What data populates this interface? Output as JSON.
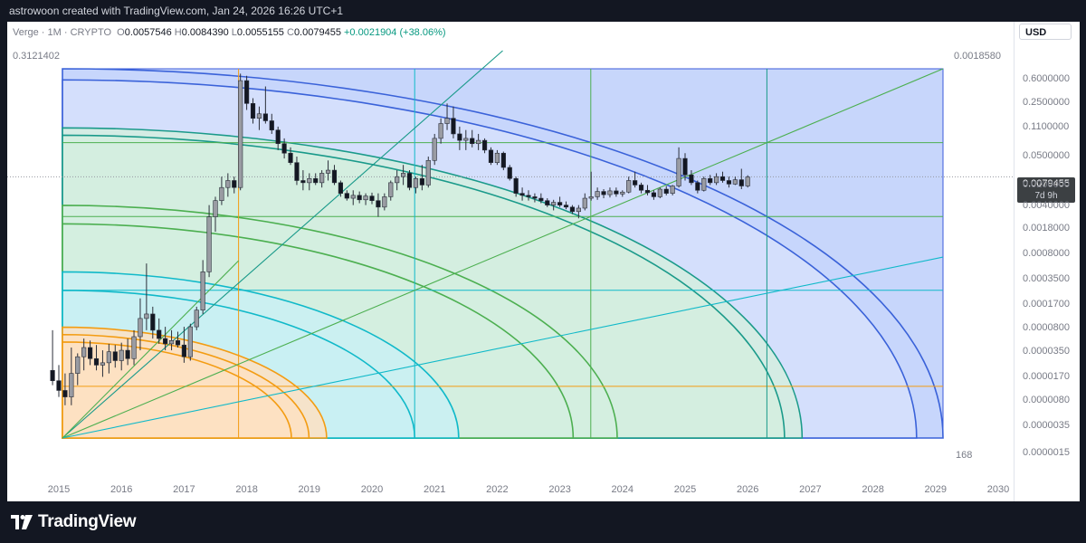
{
  "header": {
    "attribution": "astrowoon created with TradingView.com, Jan 24, 2026 16:26 UTC+1"
  },
  "legend": {
    "symbol": "Verge · 1M · CRYPTO",
    "open_label": "O",
    "open": "0.0057546",
    "high_label": "H",
    "high": "0.0084390",
    "low_label": "L",
    "low": "0.0055155",
    "close_label": "C",
    "close": "0.0079455",
    "change": "+0.0021904 (+38.06%)"
  },
  "price_axis": {
    "currency": "USD",
    "labels": [
      "0.6000000",
      "0.2500000",
      "0.1100000",
      "0.0500000",
      "0.0200000",
      "0.0040000",
      "0.0018000",
      "0.0008000",
      "0.0003500",
      "0.0001700",
      "0.0000800",
      "0.0000350",
      "0.0000170",
      "0.0000080",
      "0.0000035",
      "0.0000015"
    ],
    "last_price": "0.0079455",
    "countdown": "7d 9h"
  },
  "levels": {
    "top_left": "0.3121402",
    "top_right": "0.0018580",
    "bottom_right": "168"
  },
  "time_axis": {
    "labels": [
      "2015",
      "2016",
      "2017",
      "2018",
      "2019",
      "2020",
      "2021",
      "2022",
      "2023",
      "2024",
      "2025",
      "2026",
      "2027",
      "2028",
      "2029",
      "2030"
    ]
  },
  "footer": {
    "brand": "TradingView"
  },
  "colors": {
    "up": "#ffffff",
    "down": "#131722",
    "wick": "#2a2e39",
    "blue_zone": "#c7d6fb",
    "orange_zone": "#fde1c2",
    "cyan_zone": "#c9f0f3",
    "green_zone": "#d3eedf"
  },
  "chart_data": {
    "type": "candlestick",
    "x_unit": "year",
    "y_scale": "log",
    "ylim": [
      1.5e-06,
      0.6
    ],
    "xlim": [
      2014.6,
      2030.4
    ],
    "candles": [
      {
        "t": 2014.9,
        "o": 1e-05,
        "h": 4e-05,
        "l": 6e-06,
        "c": 7e-06
      },
      {
        "t": 2015.0,
        "o": 7e-06,
        "h": 1.2e-05,
        "l": 4e-06,
        "c": 5e-06
      },
      {
        "t": 2015.1,
        "o": 5e-06,
        "h": 9e-06,
        "l": 3e-06,
        "c": 4e-06
      },
      {
        "t": 2015.2,
        "o": 4e-06,
        "h": 2.2e-05,
        "l": 3e-06,
        "c": 9e-06
      },
      {
        "t": 2015.3,
        "o": 9e-06,
        "h": 1.8e-05,
        "l": 6e-06,
        "c": 1.6e-05
      },
      {
        "t": 2015.4,
        "o": 1.6e-05,
        "h": 3e-05,
        "l": 1e-05,
        "c": 2.2e-05
      },
      {
        "t": 2015.5,
        "o": 2.2e-05,
        "h": 2.8e-05,
        "l": 1.2e-05,
        "c": 1.5e-05
      },
      {
        "t": 2015.6,
        "o": 1.5e-05,
        "h": 2.4e-05,
        "l": 1e-05,
        "c": 1.2e-05
      },
      {
        "t": 2015.7,
        "o": 1.2e-05,
        "h": 2e-05,
        "l": 8e-06,
        "c": 1.3e-05
      },
      {
        "t": 2015.8,
        "o": 1.3e-05,
        "h": 2.5e-05,
        "l": 9e-06,
        "c": 1.9e-05
      },
      {
        "t": 2015.9,
        "o": 1.9e-05,
        "h": 2.4e-05,
        "l": 1.1e-05,
        "c": 1.4e-05
      },
      {
        "t": 2016.0,
        "o": 1.4e-05,
        "h": 2.6e-05,
        "l": 1e-05,
        "c": 2e-05
      },
      {
        "t": 2016.1,
        "o": 2e-05,
        "h": 3e-05,
        "l": 1.2e-05,
        "c": 1.5e-05
      },
      {
        "t": 2016.2,
        "o": 1.5e-05,
        "h": 4e-05,
        "l": 1.2e-05,
        "c": 3.2e-05
      },
      {
        "t": 2016.3,
        "o": 3.2e-05,
        "h": 0.00012,
        "l": 2e-05,
        "c": 6e-05
      },
      {
        "t": 2016.4,
        "o": 6e-05,
        "h": 0.0004,
        "l": 4e-05,
        "c": 7e-05
      },
      {
        "t": 2016.5,
        "o": 7e-05,
        "h": 9e-05,
        "l": 3e-05,
        "c": 4e-05
      },
      {
        "t": 2016.6,
        "o": 4e-05,
        "h": 6e-05,
        "l": 2.5e-05,
        "c": 3e-05
      },
      {
        "t": 2016.7,
        "o": 3e-05,
        "h": 4.5e-05,
        "l": 2e-05,
        "c": 2.5e-05
      },
      {
        "t": 2016.8,
        "o": 2.5e-05,
        "h": 4e-05,
        "l": 2e-05,
        "c": 2.8e-05
      },
      {
        "t": 2016.9,
        "o": 2.8e-05,
        "h": 3.8e-05,
        "l": 2.2e-05,
        "c": 2.4e-05
      },
      {
        "t": 2017.0,
        "o": 2.4e-05,
        "h": 4.5e-05,
        "l": 1.3e-05,
        "c": 1.6e-05
      },
      {
        "t": 2017.1,
        "o": 1.6e-05,
        "h": 5e-05,
        "l": 1.4e-05,
        "c": 4.5e-05
      },
      {
        "t": 2017.2,
        "o": 4.5e-05,
        "h": 9e-05,
        "l": 4e-05,
        "c": 8e-05
      },
      {
        "t": 2017.3,
        "o": 8e-05,
        "h": 0.00045,
        "l": 7e-05,
        "c": 0.0003
      },
      {
        "t": 2017.4,
        "o": 0.0003,
        "h": 0.003,
        "l": 0.00025,
        "c": 0.002
      },
      {
        "t": 2017.5,
        "o": 0.002,
        "h": 0.004,
        "l": 0.0012,
        "c": 0.0035
      },
      {
        "t": 2017.6,
        "o": 0.0035,
        "h": 0.008,
        "l": 0.003,
        "c": 0.0055
      },
      {
        "t": 2017.7,
        "o": 0.0055,
        "h": 0.009,
        "l": 0.004,
        "c": 0.007
      },
      {
        "t": 2017.8,
        "o": 0.007,
        "h": 0.008,
        "l": 0.0045,
        "c": 0.0055
      },
      {
        "t": 2017.9,
        "o": 0.0055,
        "h": 0.28,
        "l": 0.005,
        "c": 0.22
      },
      {
        "t": 2018.0,
        "o": 0.22,
        "h": 0.26,
        "l": 0.08,
        "c": 0.1
      },
      {
        "t": 2018.1,
        "o": 0.1,
        "h": 0.12,
        "l": 0.05,
        "c": 0.06
      },
      {
        "t": 2018.2,
        "o": 0.06,
        "h": 0.09,
        "l": 0.04,
        "c": 0.07
      },
      {
        "t": 2018.3,
        "o": 0.07,
        "h": 0.18,
        "l": 0.05,
        "c": 0.055
      },
      {
        "t": 2018.4,
        "o": 0.055,
        "h": 0.07,
        "l": 0.035,
        "c": 0.04
      },
      {
        "t": 2018.5,
        "o": 0.04,
        "h": 0.045,
        "l": 0.02,
        "c": 0.025
      },
      {
        "t": 2018.6,
        "o": 0.025,
        "h": 0.03,
        "l": 0.015,
        "c": 0.018
      },
      {
        "t": 2018.7,
        "o": 0.018,
        "h": 0.022,
        "l": 0.012,
        "c": 0.013
      },
      {
        "t": 2018.8,
        "o": 0.013,
        "h": 0.016,
        "l": 0.006,
        "c": 0.007
      },
      {
        "t": 2018.9,
        "o": 0.007,
        "h": 0.01,
        "l": 0.005,
        "c": 0.0065
      },
      {
        "t": 2019.0,
        "o": 0.0065,
        "h": 0.009,
        "l": 0.005,
        "c": 0.0075
      },
      {
        "t": 2019.1,
        "o": 0.0075,
        "h": 0.009,
        "l": 0.006,
        "c": 0.0065
      },
      {
        "t": 2019.2,
        "o": 0.0065,
        "h": 0.01,
        "l": 0.0055,
        "c": 0.009
      },
      {
        "t": 2019.3,
        "o": 0.009,
        "h": 0.014,
        "l": 0.007,
        "c": 0.01
      },
      {
        "t": 2019.4,
        "o": 0.01,
        "h": 0.012,
        "l": 0.006,
        "c": 0.0065
      },
      {
        "t": 2019.5,
        "o": 0.0065,
        "h": 0.007,
        "l": 0.004,
        "c": 0.0045
      },
      {
        "t": 2019.6,
        "o": 0.0045,
        "h": 0.005,
        "l": 0.0035,
        "c": 0.0038
      },
      {
        "t": 2019.7,
        "o": 0.0038,
        "h": 0.005,
        "l": 0.003,
        "c": 0.0042
      },
      {
        "t": 2019.8,
        "o": 0.0042,
        "h": 0.0048,
        "l": 0.0032,
        "c": 0.0036
      },
      {
        "t": 2019.9,
        "o": 0.0036,
        "h": 0.0045,
        "l": 0.003,
        "c": 0.0041
      },
      {
        "t": 2020.0,
        "o": 0.0041,
        "h": 0.0046,
        "l": 0.0031,
        "c": 0.0035
      },
      {
        "t": 2020.1,
        "o": 0.0035,
        "h": 0.0045,
        "l": 0.002,
        "c": 0.0028
      },
      {
        "t": 2020.2,
        "o": 0.0028,
        "h": 0.0045,
        "l": 0.0025,
        "c": 0.004
      },
      {
        "t": 2020.3,
        "o": 0.004,
        "h": 0.007,
        "l": 0.0035,
        "c": 0.0065
      },
      {
        "t": 2020.4,
        "o": 0.0065,
        "h": 0.01,
        "l": 0.005,
        "c": 0.008
      },
      {
        "t": 2020.5,
        "o": 0.008,
        "h": 0.012,
        "l": 0.006,
        "c": 0.009
      },
      {
        "t": 2020.6,
        "o": 0.009,
        "h": 0.01,
        "l": 0.005,
        "c": 0.0055
      },
      {
        "t": 2020.7,
        "o": 0.0055,
        "h": 0.008,
        "l": 0.0045,
        "c": 0.0075
      },
      {
        "t": 2020.8,
        "o": 0.0075,
        "h": 0.012,
        "l": 0.005,
        "c": 0.006
      },
      {
        "t": 2020.9,
        "o": 0.006,
        "h": 0.016,
        "l": 0.0055,
        "c": 0.014
      },
      {
        "t": 2021.0,
        "o": 0.014,
        "h": 0.035,
        "l": 0.012,
        "c": 0.03
      },
      {
        "t": 2021.1,
        "o": 0.03,
        "h": 0.06,
        "l": 0.025,
        "c": 0.05
      },
      {
        "t": 2021.2,
        "o": 0.05,
        "h": 0.1,
        "l": 0.04,
        "c": 0.06
      },
      {
        "t": 2021.3,
        "o": 0.06,
        "h": 0.09,
        "l": 0.03,
        "c": 0.035
      },
      {
        "t": 2021.4,
        "o": 0.035,
        "h": 0.045,
        "l": 0.02,
        "c": 0.028
      },
      {
        "t": 2021.5,
        "o": 0.028,
        "h": 0.04,
        "l": 0.02,
        "c": 0.03
      },
      {
        "t": 2021.6,
        "o": 0.03,
        "h": 0.04,
        "l": 0.022,
        "c": 0.025
      },
      {
        "t": 2021.7,
        "o": 0.025,
        "h": 0.035,
        "l": 0.02,
        "c": 0.028
      },
      {
        "t": 2021.8,
        "o": 0.028,
        "h": 0.03,
        "l": 0.018,
        "c": 0.02
      },
      {
        "t": 2021.9,
        "o": 0.02,
        "h": 0.022,
        "l": 0.012,
        "c": 0.013
      },
      {
        "t": 2022.0,
        "o": 0.013,
        "h": 0.02,
        "l": 0.012,
        "c": 0.018
      },
      {
        "t": 2022.1,
        "o": 0.018,
        "h": 0.019,
        "l": 0.01,
        "c": 0.011
      },
      {
        "t": 2022.2,
        "o": 0.011,
        "h": 0.012,
        "l": 0.007,
        "c": 0.0075
      },
      {
        "t": 2022.3,
        "o": 0.0075,
        "h": 0.008,
        "l": 0.004,
        "c": 0.0045
      },
      {
        "t": 2022.4,
        "o": 0.0045,
        "h": 0.0055,
        "l": 0.0035,
        "c": 0.0042
      },
      {
        "t": 2022.5,
        "o": 0.0042,
        "h": 0.005,
        "l": 0.0035,
        "c": 0.004
      },
      {
        "t": 2022.6,
        "o": 0.004,
        "h": 0.0045,
        "l": 0.0033,
        "c": 0.0038
      },
      {
        "t": 2022.7,
        "o": 0.0038,
        "h": 0.0045,
        "l": 0.0032,
        "c": 0.0035
      },
      {
        "t": 2022.8,
        "o": 0.0035,
        "h": 0.0038,
        "l": 0.0028,
        "c": 0.003
      },
      {
        "t": 2022.9,
        "o": 0.003,
        "h": 0.0036,
        "l": 0.0025,
        "c": 0.0033
      },
      {
        "t": 2023.0,
        "o": 0.0033,
        "h": 0.004,
        "l": 0.0028,
        "c": 0.003
      },
      {
        "t": 2023.1,
        "o": 0.003,
        "h": 0.0034,
        "l": 0.0026,
        "c": 0.0028
      },
      {
        "t": 2023.2,
        "o": 0.0028,
        "h": 0.003,
        "l": 0.0022,
        "c": 0.0024
      },
      {
        "t": 2023.3,
        "o": 0.0024,
        "h": 0.003,
        "l": 0.0019,
        "c": 0.0027
      },
      {
        "t": 2023.4,
        "o": 0.0027,
        "h": 0.0045,
        "l": 0.0025,
        "c": 0.0038
      },
      {
        "t": 2023.5,
        "o": 0.0038,
        "h": 0.0095,
        "l": 0.0035,
        "c": 0.004
      },
      {
        "t": 2023.6,
        "o": 0.004,
        "h": 0.0055,
        "l": 0.0036,
        "c": 0.0048
      },
      {
        "t": 2023.7,
        "o": 0.0048,
        "h": 0.0052,
        "l": 0.0038,
        "c": 0.0043
      },
      {
        "t": 2023.8,
        "o": 0.0043,
        "h": 0.0055,
        "l": 0.0039,
        "c": 0.0049
      },
      {
        "t": 2023.9,
        "o": 0.0049,
        "h": 0.0055,
        "l": 0.004,
        "c": 0.0044
      },
      {
        "t": 2024.0,
        "o": 0.0044,
        "h": 0.005,
        "l": 0.004,
        "c": 0.0047
      },
      {
        "t": 2024.1,
        "o": 0.0047,
        "h": 0.008,
        "l": 0.0045,
        "c": 0.007
      },
      {
        "t": 2024.2,
        "o": 0.007,
        "h": 0.0095,
        "l": 0.0055,
        "c": 0.006
      },
      {
        "t": 2024.3,
        "o": 0.006,
        "h": 0.0065,
        "l": 0.0045,
        "c": 0.005
      },
      {
        "t": 2024.4,
        "o": 0.005,
        "h": 0.006,
        "l": 0.0042,
        "c": 0.0046
      },
      {
        "t": 2024.5,
        "o": 0.0046,
        "h": 0.005,
        "l": 0.0036,
        "c": 0.004
      },
      {
        "t": 2024.6,
        "o": 0.004,
        "h": 0.0055,
        "l": 0.0038,
        "c": 0.0052
      },
      {
        "t": 2024.7,
        "o": 0.0052,
        "h": 0.0058,
        "l": 0.0042,
        "c": 0.0045
      },
      {
        "t": 2024.8,
        "o": 0.0045,
        "h": 0.006,
        "l": 0.0042,
        "c": 0.0058
      },
      {
        "t": 2024.9,
        "o": 0.0058,
        "h": 0.022,
        "l": 0.0055,
        "c": 0.015
      },
      {
        "t": 2025.0,
        "o": 0.015,
        "h": 0.018,
        "l": 0.007,
        "c": 0.0085
      },
      {
        "t": 2025.1,
        "o": 0.0085,
        "h": 0.01,
        "l": 0.006,
        "c": 0.0065
      },
      {
        "t": 2025.2,
        "o": 0.0065,
        "h": 0.007,
        "l": 0.0045,
        "c": 0.005
      },
      {
        "t": 2025.3,
        "o": 0.005,
        "h": 0.008,
        "l": 0.0048,
        "c": 0.0075
      },
      {
        "t": 2025.4,
        "o": 0.0075,
        "h": 0.0085,
        "l": 0.006,
        "c": 0.0065
      },
      {
        "t": 2025.5,
        "o": 0.0065,
        "h": 0.009,
        "l": 0.006,
        "c": 0.008
      },
      {
        "t": 2025.6,
        "o": 0.008,
        "h": 0.0095,
        "l": 0.0065,
        "c": 0.007
      },
      {
        "t": 2025.7,
        "o": 0.007,
        "h": 0.008,
        "l": 0.0055,
        "c": 0.0062
      },
      {
        "t": 2025.8,
        "o": 0.0062,
        "h": 0.008,
        "l": 0.006,
        "c": 0.0072
      },
      {
        "t": 2025.9,
        "o": 0.0072,
        "h": 0.0105,
        "l": 0.0052,
        "c": 0.0058
      },
      {
        "t": 2026.0,
        "o": 0.0058,
        "h": 0.0084,
        "l": 0.0055,
        "c": 0.0079
      }
    ]
  }
}
